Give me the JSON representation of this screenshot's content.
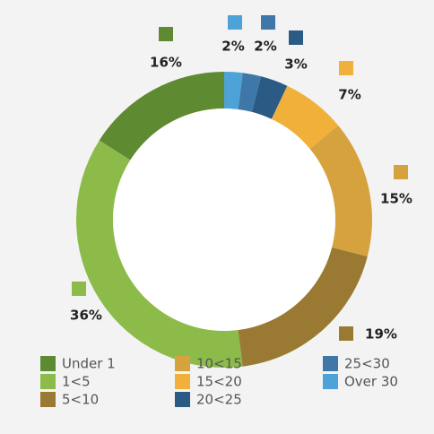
{
  "chart_data": {
    "type": "donut",
    "categories": [
      "Under 1",
      "1<5",
      "5<10",
      "10<15",
      "15<20",
      "20<25",
      "25<30",
      "Over 30"
    ],
    "values": [
      16,
      36,
      19,
      15,
      7,
      3,
      2,
      2
    ],
    "value_labels": [
      "16%",
      "36%",
      "19%",
      "15%",
      "7%",
      "3%",
      "2%",
      "2%"
    ],
    "colors": [
      "#5e8a32",
      "#8cbb4a",
      "#9a7a33",
      "#d6a23e",
      "#f0b03a",
      "#2b5a85",
      "#3f78a8",
      "#4da3d8"
    ],
    "direction": "counterclockwise",
    "legend": "bottom"
  }
}
